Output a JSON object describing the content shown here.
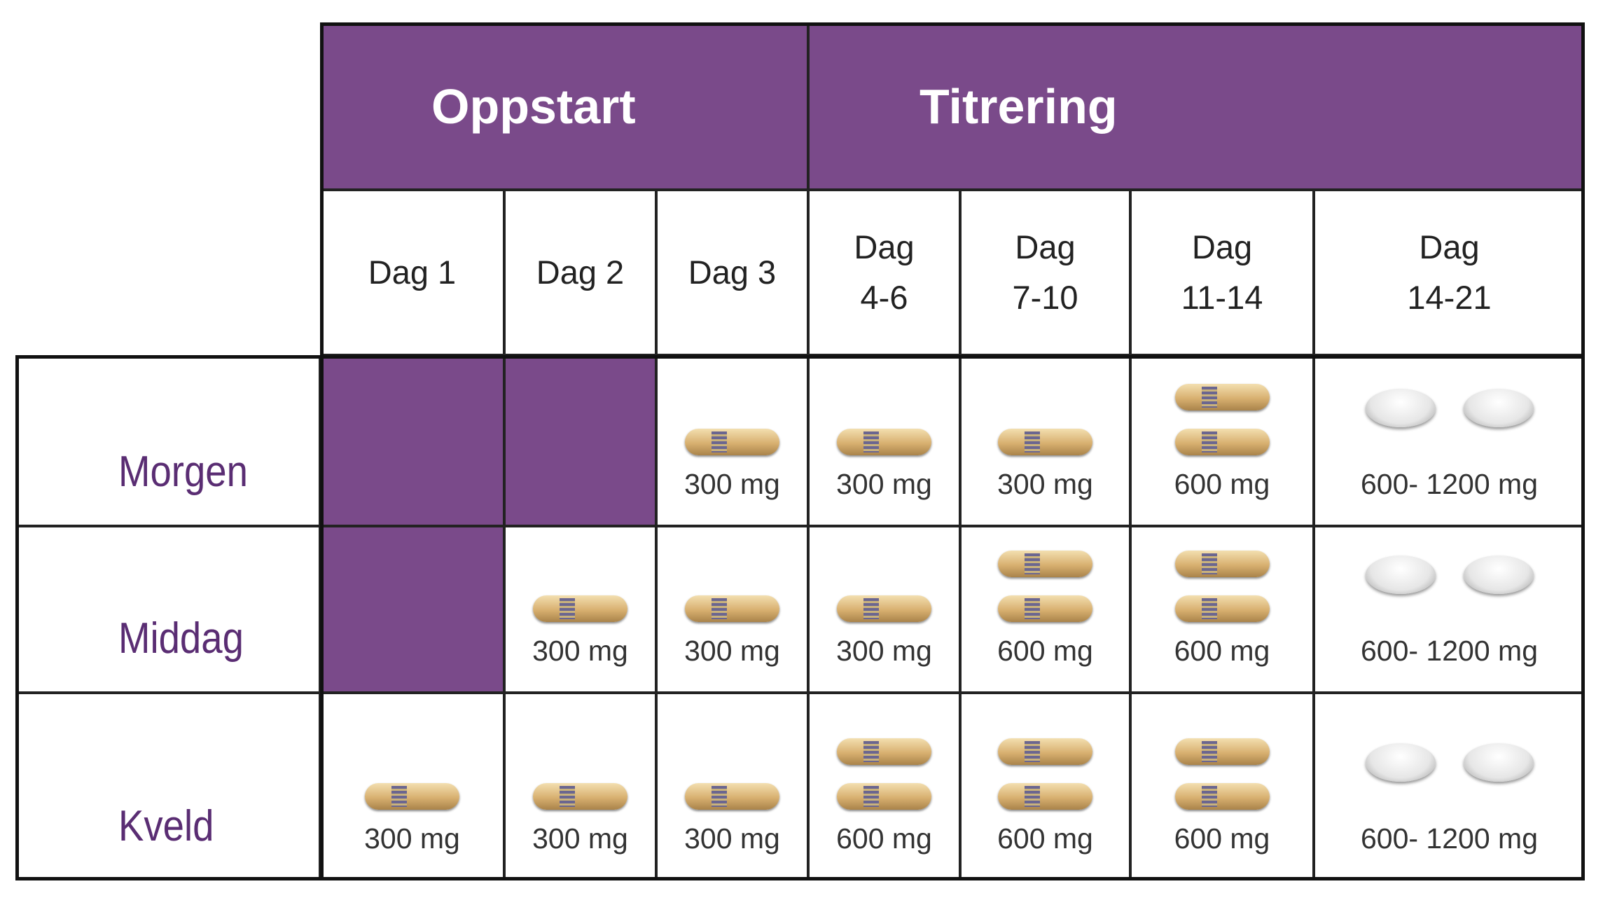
{
  "header": {
    "groups": [
      "Oppstart",
      "Titrering"
    ],
    "columns": [
      [
        "Dag 1"
      ],
      [
        "Dag 2"
      ],
      [
        "Dag 3"
      ],
      [
        "Dag",
        "4-6"
      ],
      [
        "Dag",
        "7-10"
      ],
      [
        "Dag",
        "11-14"
      ],
      [
        "Dag",
        "14-21"
      ]
    ]
  },
  "rows": [
    {
      "label": "Morgen",
      "cells": [
        null,
        null,
        "300 mg",
        "300 mg",
        "300 mg",
        "600 mg",
        "600- 1200 mg"
      ]
    },
    {
      "label": "Middag",
      "cells": [
        null,
        "300 mg",
        "300 mg",
        "300 mg",
        "600 mg",
        "600 mg",
        "600- 1200 mg"
      ]
    },
    {
      "label": "Kveld",
      "cells": [
        "300 mg",
        "300 mg",
        "300 mg",
        "600 mg",
        "600 mg",
        "600 mg",
        "600- 1200 mg"
      ]
    }
  ]
}
